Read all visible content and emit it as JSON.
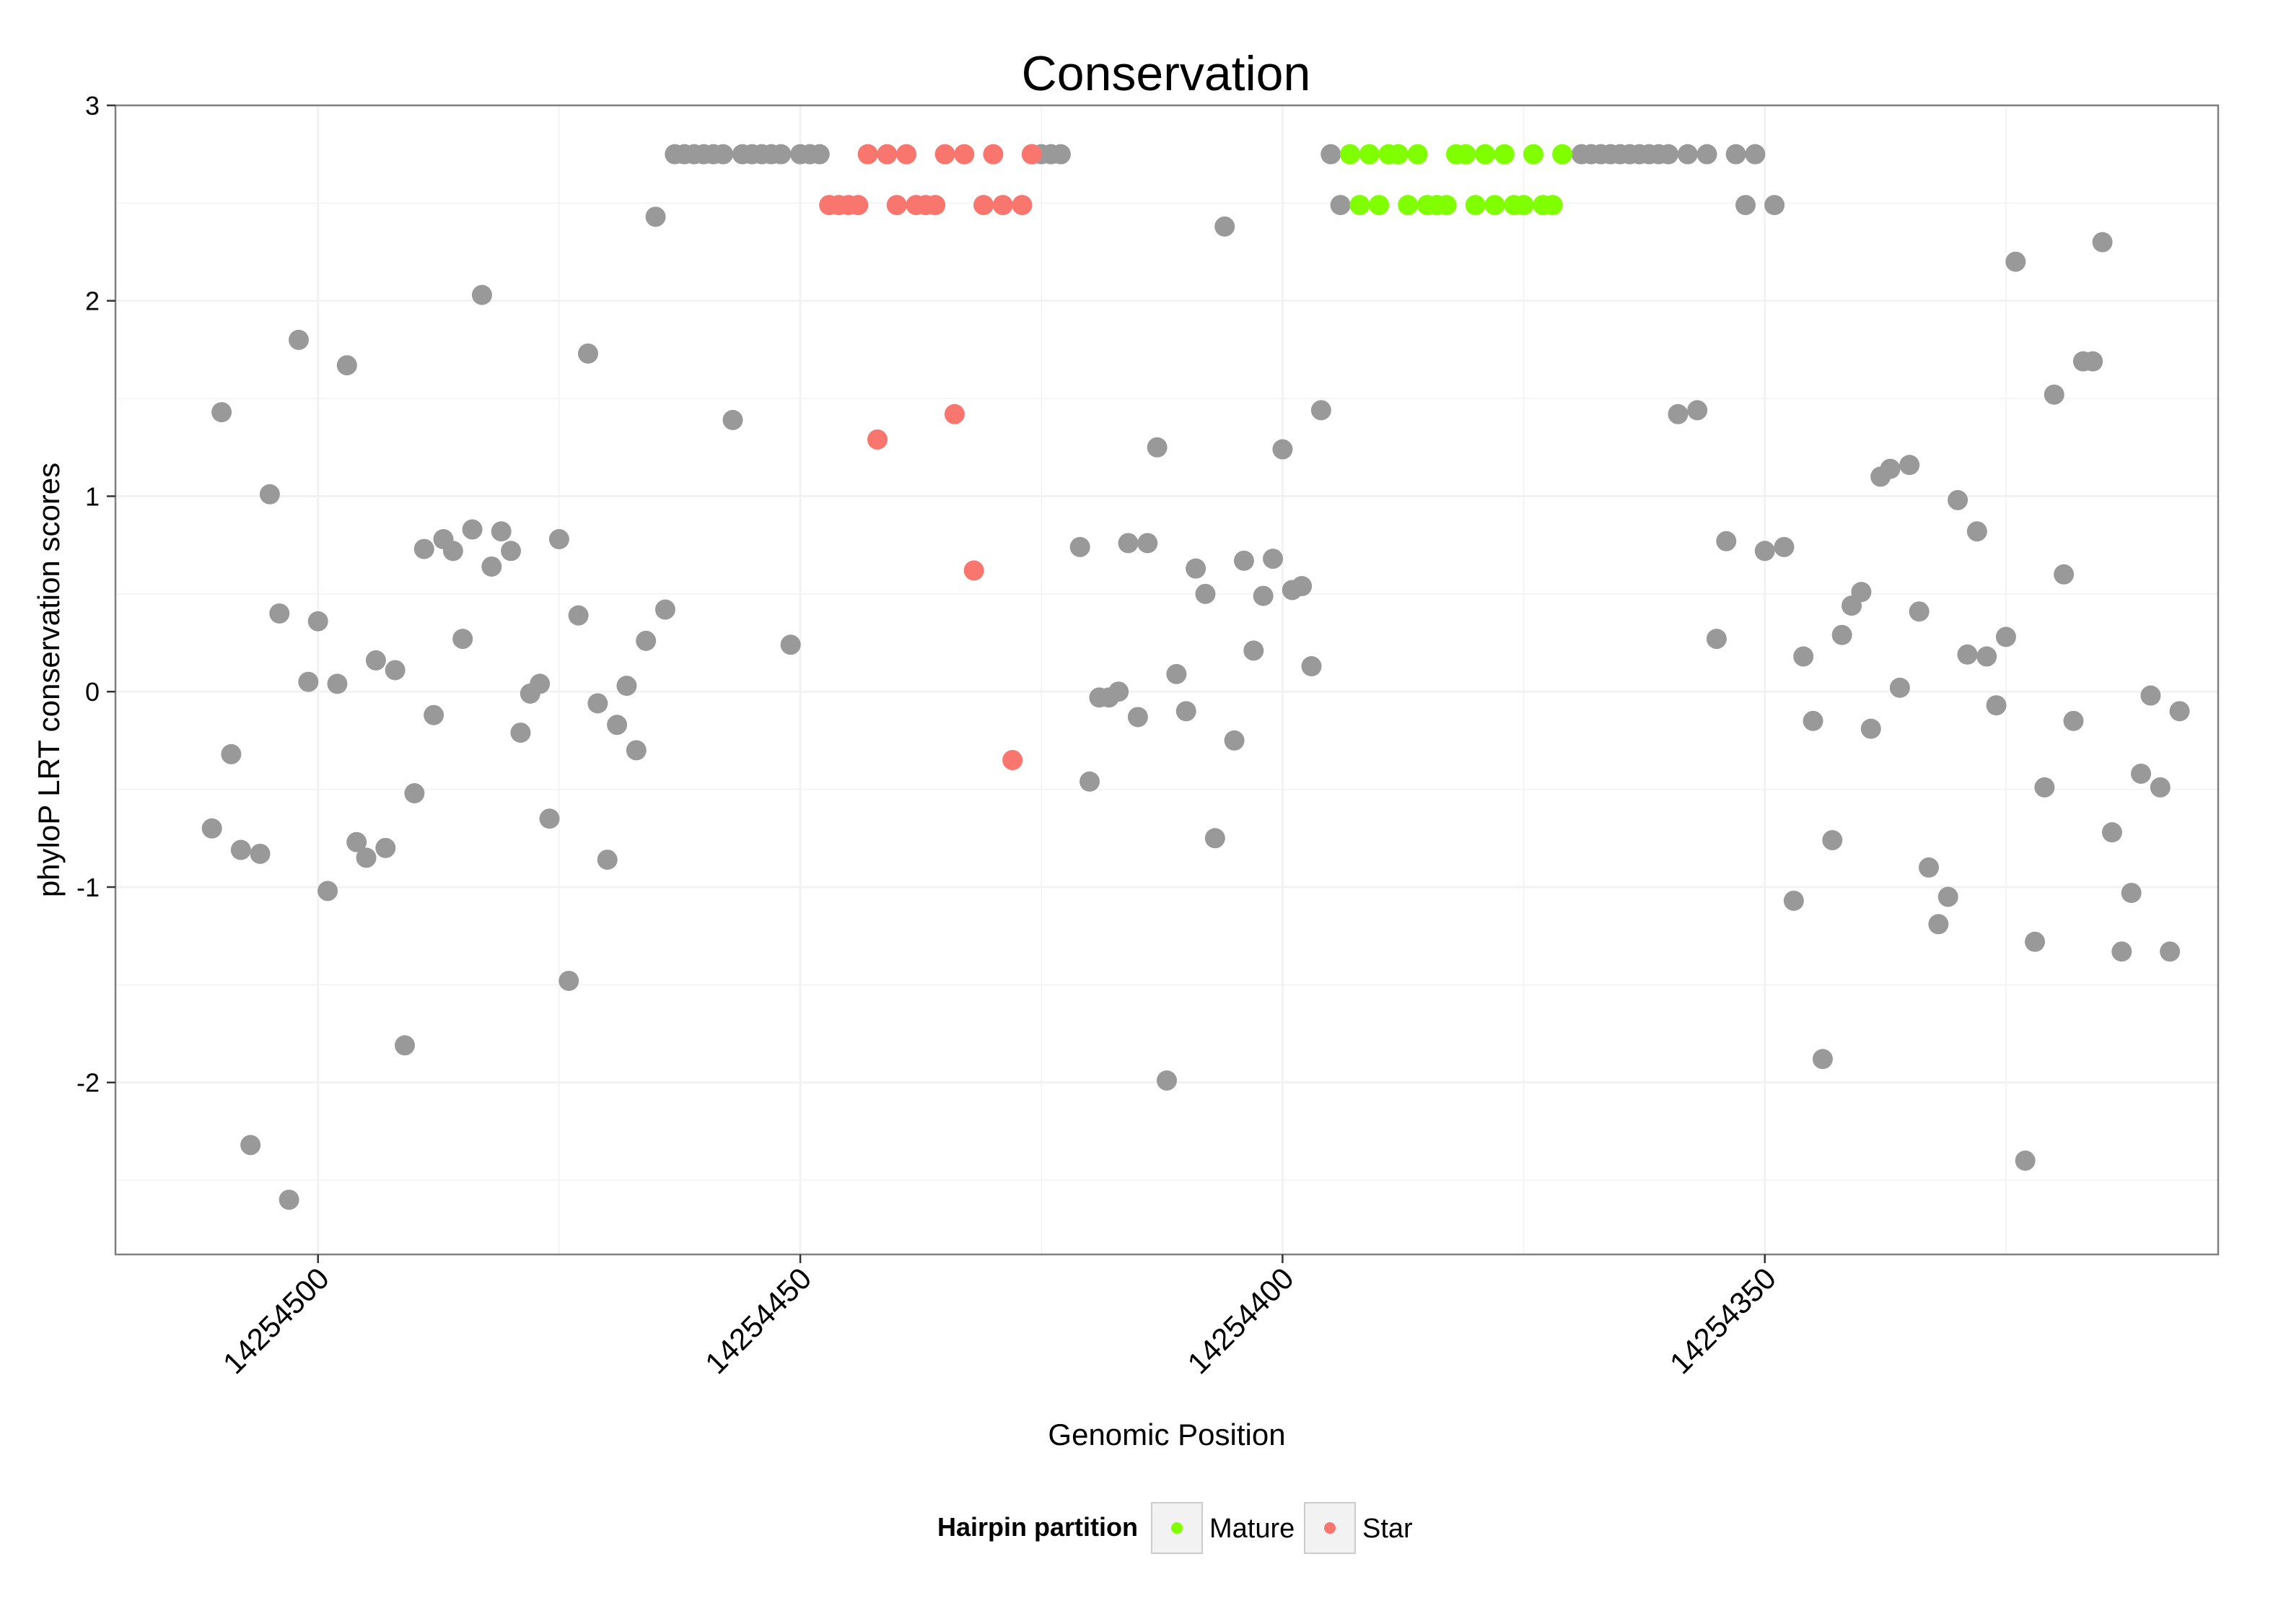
{
  "chart_data": {
    "type": "scatter",
    "title": "Conservation",
    "xlabel": "Genomic Position",
    "ylabel": "phyloP LRT conservation scores",
    "xlim": [
      14254521,
      14254303
    ],
    "x_reversed": true,
    "ylim": [
      -2.88,
      3.0
    ],
    "x_ticks": [
      14254500,
      14254450,
      14254400,
      14254350
    ],
    "y_ticks": [
      -2,
      -1,
      0,
      1,
      2,
      3
    ],
    "grid": true,
    "legend": {
      "title": "Hairpin partition",
      "placement": "bottom",
      "entries": [
        {
          "label": "Mature",
          "color": "#7FFF00"
        },
        {
          "label": "Star",
          "color": "#F8766D"
        }
      ]
    },
    "colors": {
      "Other": "#999999",
      "Mature": "#7FFF00",
      "Star": "#F8766D"
    },
    "series": [
      {
        "name": "Other",
        "color": "#999999",
        "points": [
          [
            14254511,
            -0.7
          ],
          [
            14254510,
            1.43
          ],
          [
            14254509,
            -0.32
          ],
          [
            14254508,
            -0.81
          ],
          [
            14254507,
            -2.32
          ],
          [
            14254506,
            -0.83
          ],
          [
            14254505,
            1.01
          ],
          [
            14254504,
            0.4
          ],
          [
            14254503,
            -2.6
          ],
          [
            14254502,
            1.8
          ],
          [
            14254501,
            0.05
          ],
          [
            14254500,
            0.36
          ],
          [
            14254499,
            -1.02
          ],
          [
            14254498,
            0.04
          ],
          [
            14254497,
            1.67
          ],
          [
            14254496,
            -0.77
          ],
          [
            14254495,
            -0.85
          ],
          [
            14254494,
            0.16
          ],
          [
            14254493,
            -0.8
          ],
          [
            14254492,
            0.11
          ],
          [
            14254491,
            -1.81
          ],
          [
            14254490,
            -0.52
          ],
          [
            14254489,
            0.73
          ],
          [
            14254488,
            -0.12
          ],
          [
            14254487,
            0.78
          ],
          [
            14254486,
            0.72
          ],
          [
            14254485,
            0.27
          ],
          [
            14254484,
            0.83
          ],
          [
            14254483,
            2.03
          ],
          [
            14254482,
            0.64
          ],
          [
            14254481,
            0.82
          ],
          [
            14254480,
            0.72
          ],
          [
            14254479,
            -0.21
          ],
          [
            14254478,
            -0.01
          ],
          [
            14254477,
            0.04
          ],
          [
            14254476,
            -0.65
          ],
          [
            14254475,
            0.78
          ],
          [
            14254474,
            -1.48
          ],
          [
            14254473,
            0.39
          ],
          [
            14254472,
            1.73
          ],
          [
            14254471,
            -0.06
          ],
          [
            14254470,
            -0.86
          ],
          [
            14254469,
            -0.17
          ],
          [
            14254468,
            0.03
          ],
          [
            14254467,
            -0.3
          ],
          [
            14254466,
            0.26
          ],
          [
            14254465,
            2.43
          ],
          [
            14254464,
            0.42
          ],
          [
            14254463,
            2.75
          ],
          [
            14254462,
            2.75
          ],
          [
            14254461,
            2.75
          ],
          [
            14254460,
            2.75
          ],
          [
            14254459,
            2.75
          ],
          [
            14254458,
            2.75
          ],
          [
            14254457,
            1.39
          ],
          [
            14254456,
            2.75
          ],
          [
            14254455,
            2.75
          ],
          [
            14254454,
            2.75
          ],
          [
            14254453,
            2.75
          ],
          [
            14254452,
            2.75
          ],
          [
            14254451,
            0.24
          ],
          [
            14254450,
            2.75
          ],
          [
            14254449,
            2.75
          ],
          [
            14254448,
            2.75
          ],
          [
            14254426,
            2.75
          ],
          [
            14254425,
            2.75
          ],
          [
            14254424,
            2.75
          ],
          [
            14254423,
            2.75
          ],
          [
            14254421,
            0.74
          ],
          [
            14254420,
            -0.46
          ],
          [
            14254419,
            -0.03
          ],
          [
            14254418,
            -0.03
          ],
          [
            14254417,
            0.0
          ],
          [
            14254416,
            0.76
          ],
          [
            14254415,
            -0.13
          ],
          [
            14254414,
            0.76
          ],
          [
            14254413,
            1.25
          ],
          [
            14254412,
            -1.99
          ],
          [
            14254411,
            0.09
          ],
          [
            14254410,
            -0.1
          ],
          [
            14254409,
            0.63
          ],
          [
            14254408,
            0.5
          ],
          [
            14254407,
            -0.75
          ],
          [
            14254406,
            2.38
          ],
          [
            14254405,
            -0.25
          ],
          [
            14254404,
            0.67
          ],
          [
            14254403,
            0.21
          ],
          [
            14254402,
            0.49
          ],
          [
            14254401,
            0.68
          ],
          [
            14254400,
            1.24
          ],
          [
            14254399,
            0.52
          ],
          [
            14254398,
            0.54
          ],
          [
            14254397,
            0.13
          ],
          [
            14254396,
            1.44
          ],
          [
            14254395,
            2.75
          ],
          [
            14254394,
            2.49
          ],
          [
            14254369,
            2.75
          ],
          [
            14254368,
            2.75
          ],
          [
            14254367,
            2.75
          ],
          [
            14254366,
            2.75
          ],
          [
            14254365,
            2.75
          ],
          [
            14254364,
            2.75
          ],
          [
            14254363,
            2.75
          ],
          [
            14254362,
            2.75
          ],
          [
            14254361,
            2.75
          ],
          [
            14254360,
            2.75
          ],
          [
            14254359,
            1.42
          ],
          [
            14254358,
            2.75
          ],
          [
            14254357,
            1.44
          ],
          [
            14254356,
            2.75
          ],
          [
            14254355,
            0.27
          ],
          [
            14254354,
            0.77
          ],
          [
            14254353,
            2.75
          ],
          [
            14254352,
            2.49
          ],
          [
            14254351,
            2.75
          ],
          [
            14254350,
            0.72
          ],
          [
            14254349,
            2.49
          ],
          [
            14254348,
            0.74
          ],
          [
            14254347,
            -1.07
          ],
          [
            14254346,
            0.18
          ],
          [
            14254345,
            -0.15
          ],
          [
            14254344,
            -1.88
          ],
          [
            14254343,
            -0.76
          ],
          [
            14254342,
            0.29
          ],
          [
            14254341,
            0.44
          ],
          [
            14254340,
            0.51
          ],
          [
            14254339,
            -0.19
          ],
          [
            14254338,
            1.1
          ],
          [
            14254337,
            1.14
          ],
          [
            14254336,
            0.02
          ],
          [
            14254335,
            1.16
          ],
          [
            14254334,
            0.41
          ],
          [
            14254333,
            -0.9
          ],
          [
            14254332,
            -1.19
          ],
          [
            14254331,
            -1.05
          ],
          [
            14254330,
            0.98
          ],
          [
            14254329,
            0.19
          ],
          [
            14254328,
            0.82
          ],
          [
            14254327,
            0.18
          ],
          [
            14254326,
            -0.07
          ],
          [
            14254325,
            0.28
          ],
          [
            14254324,
            2.2
          ],
          [
            14254323,
            -2.4
          ],
          [
            14254322,
            -1.28
          ],
          [
            14254321,
            -0.49
          ],
          [
            14254320,
            1.52
          ],
          [
            14254319,
            0.6
          ],
          [
            14254318,
            -0.15
          ],
          [
            14254317,
            1.69
          ],
          [
            14254316,
            1.69
          ],
          [
            14254315,
            2.3
          ],
          [
            14254314,
            -0.72
          ],
          [
            14254313,
            -1.33
          ],
          [
            14254312,
            -1.03
          ],
          [
            14254311,
            -0.42
          ],
          [
            14254310,
            -0.02
          ],
          [
            14254309,
            -0.49
          ],
          [
            14254308,
            -1.33
          ],
          [
            14254307,
            -0.1
          ]
        ]
      },
      {
        "name": "Star",
        "color": "#F8766D",
        "points": [
          [
            14254447,
            2.49
          ],
          [
            14254446,
            2.49
          ],
          [
            14254445,
            2.49
          ],
          [
            14254444,
            2.49
          ],
          [
            14254443,
            2.75
          ],
          [
            14254442,
            1.29
          ],
          [
            14254441,
            2.75
          ],
          [
            14254440,
            2.49
          ],
          [
            14254439,
            2.75
          ],
          [
            14254438,
            2.49
          ],
          [
            14254437,
            2.49
          ],
          [
            14254436,
            2.49
          ],
          [
            14254435,
            2.75
          ],
          [
            14254434,
            1.42
          ],
          [
            14254433,
            2.75
          ],
          [
            14254432,
            0.62
          ],
          [
            14254431,
            2.49
          ],
          [
            14254430,
            2.75
          ],
          [
            14254429,
            2.49
          ],
          [
            14254428,
            -0.35
          ],
          [
            14254427,
            2.49
          ],
          [
            14254426,
            2.75
          ]
        ]
      },
      {
        "name": "Mature",
        "color": "#7FFF00",
        "points": [
          [
            14254393,
            2.75
          ],
          [
            14254392,
            2.49
          ],
          [
            14254391,
            2.75
          ],
          [
            14254390,
            2.49
          ],
          [
            14254389,
            2.75
          ],
          [
            14254388,
            2.75
          ],
          [
            14254387,
            2.49
          ],
          [
            14254386,
            2.75
          ],
          [
            14254385,
            2.49
          ],
          [
            14254384,
            2.49
          ],
          [
            14254383,
            2.49
          ],
          [
            14254382,
            2.75
          ],
          [
            14254381,
            2.75
          ],
          [
            14254380,
            2.49
          ],
          [
            14254379,
            2.75
          ],
          [
            14254378,
            2.49
          ],
          [
            14254377,
            2.75
          ],
          [
            14254376,
            2.49
          ],
          [
            14254375,
            2.49
          ],
          [
            14254374,
            2.75
          ],
          [
            14254373,
            2.49
          ],
          [
            14254372,
            2.49
          ],
          [
            14254371,
            2.75
          ]
        ]
      }
    ]
  }
}
